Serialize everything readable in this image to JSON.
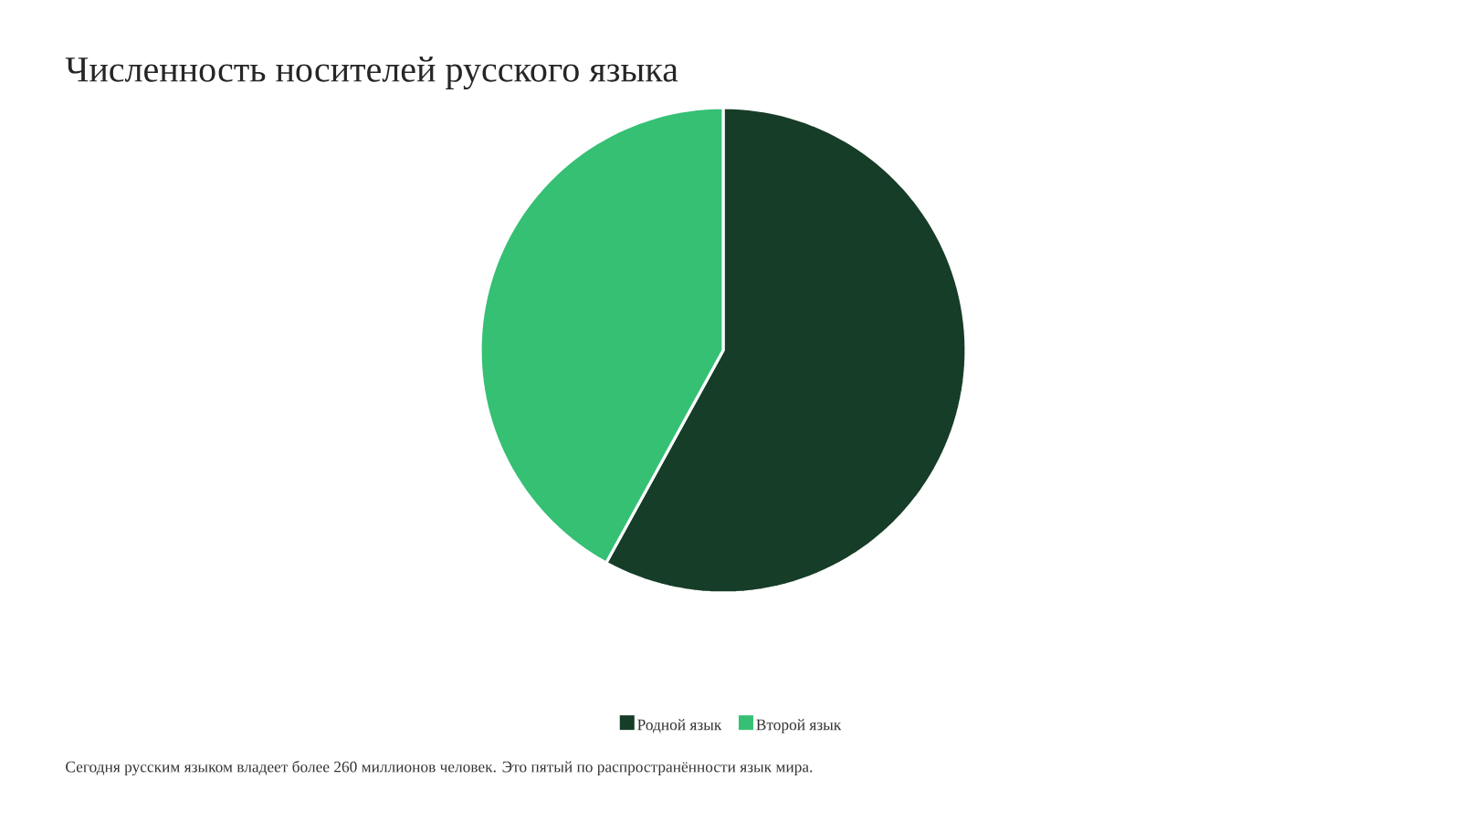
{
  "chart_data": {
    "type": "pie",
    "title": "Численность носителей русского языка",
    "categories": [
      "Родной язык",
      "Второй язык"
    ],
    "values": [
      58,
      42
    ],
    "colors": [
      "#163d27",
      "#35c074"
    ],
    "legend": "bottom",
    "annotations": [
      "Сегодня русским языком владеет более 260 миллионов человек. Это пятый по распространённости язык мира."
    ]
  }
}
